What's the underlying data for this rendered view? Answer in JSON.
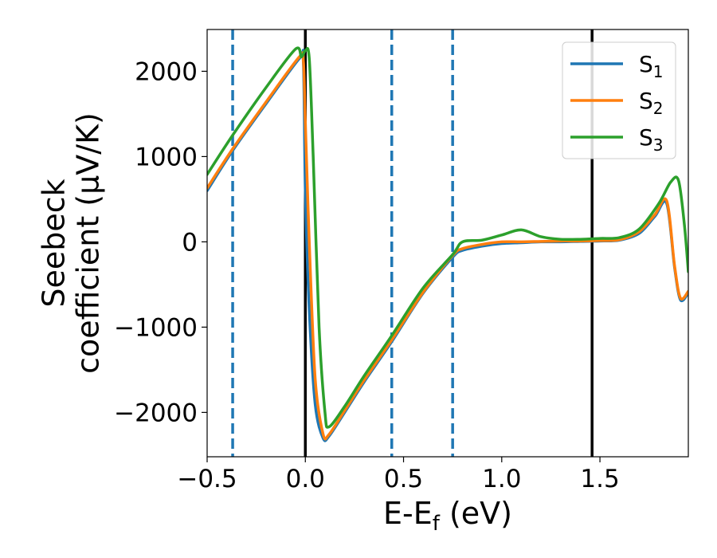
{
  "chart_data": {
    "type": "line",
    "xlabel": {
      "base": "E-E",
      "sub": "f",
      "suffix": " (eV)"
    },
    "ylabel": {
      "line1": "Seebeck",
      "line2": "coefficient  (μV/K)"
    },
    "xlim": [
      -0.5,
      1.95
    ],
    "ylim": [
      -2520,
      2490
    ],
    "x_ticks": [
      -0.5,
      0.0,
      0.5,
      1.0,
      1.5
    ],
    "x_tick_labels": [
      "−0.5",
      "0.0",
      "0.5",
      "1.0",
      "1.5"
    ],
    "y_ticks": [
      -2000,
      -1000,
      0,
      1000,
      2000
    ],
    "y_tick_labels": [
      "−2000",
      "−1000",
      "0",
      "1000",
      "2000"
    ],
    "grid": false,
    "legend_position": "top-right",
    "vertical_lines": [
      {
        "x": -0.37,
        "style": "dashed",
        "color": "#1f77b4"
      },
      {
        "x": 0.0,
        "style": "solid",
        "color": "#000000"
      },
      {
        "x": 0.44,
        "style": "dashed",
        "color": "#1f77b4"
      },
      {
        "x": 0.75,
        "style": "dashed",
        "color": "#1f77b4"
      },
      {
        "x": 1.46,
        "style": "solid",
        "color": "#000000"
      }
    ],
    "series": [
      {
        "name": {
          "base": "S",
          "sub": "1"
        },
        "color": "#1f77b4",
        "x": [
          -0.5,
          -0.37,
          -0.2,
          -0.03,
          -0.01,
          0.0,
          0.02,
          0.05,
          0.09,
          0.12,
          0.2,
          0.3,
          0.44,
          0.6,
          0.75,
          0.8,
          0.9,
          1.0,
          1.1,
          1.2,
          1.3,
          1.4,
          1.5,
          1.6,
          1.7,
          1.78,
          1.84,
          1.88,
          1.91,
          1.95
        ],
        "y": [
          600,
          1070,
          1620,
          2150,
          2100,
          600,
          -800,
          -1900,
          -2300,
          -2280,
          -2000,
          -1640,
          -1170,
          -600,
          -180,
          -100,
          -50,
          -20,
          -10,
          0,
          0,
          5,
          10,
          20,
          100,
          300,
          450,
          -300,
          -680,
          -600
        ]
      },
      {
        "name": {
          "base": "S",
          "sub": "2"
        },
        "color": "#ff7f0e",
        "x": [
          -0.5,
          -0.37,
          -0.2,
          -0.03,
          -0.01,
          0.0,
          0.02,
          0.05,
          0.09,
          0.12,
          0.2,
          0.3,
          0.44,
          0.6,
          0.75,
          0.8,
          0.9,
          1.0,
          1.1,
          1.2,
          1.3,
          1.4,
          1.5,
          1.6,
          1.7,
          1.78,
          1.84,
          1.88,
          1.91,
          1.95
        ],
        "y": [
          630,
          1090,
          1640,
          2170,
          2120,
          1400,
          0,
          -1600,
          -2250,
          -2260,
          -1980,
          -1620,
          -1150,
          -590,
          -160,
          -80,
          -30,
          0,
          0,
          5,
          10,
          10,
          15,
          25,
          120,
          320,
          480,
          -280,
          -660,
          -580
        ]
      },
      {
        "name": {
          "base": "S",
          "sub": "3"
        },
        "color": "#2ca02c",
        "x": [
          -0.5,
          -0.37,
          -0.2,
          -0.05,
          -0.02,
          0.0,
          0.02,
          0.04,
          0.07,
          0.1,
          0.12,
          0.2,
          0.3,
          0.44,
          0.6,
          0.75,
          0.8,
          0.9,
          1.0,
          1.1,
          1.2,
          1.3,
          1.4,
          1.5,
          1.6,
          1.7,
          1.8,
          1.86,
          1.9,
          1.93,
          1.95
        ],
        "y": [
          790,
          1250,
          1810,
          2260,
          2170,
          2240,
          2150,
          1000,
          -1000,
          -2000,
          -2170,
          -1930,
          -1570,
          -1100,
          -540,
          -150,
          0,
          20,
          80,
          140,
          60,
          30,
          30,
          40,
          50,
          150,
          450,
          700,
          720,
          200,
          -350
        ]
      }
    ]
  }
}
